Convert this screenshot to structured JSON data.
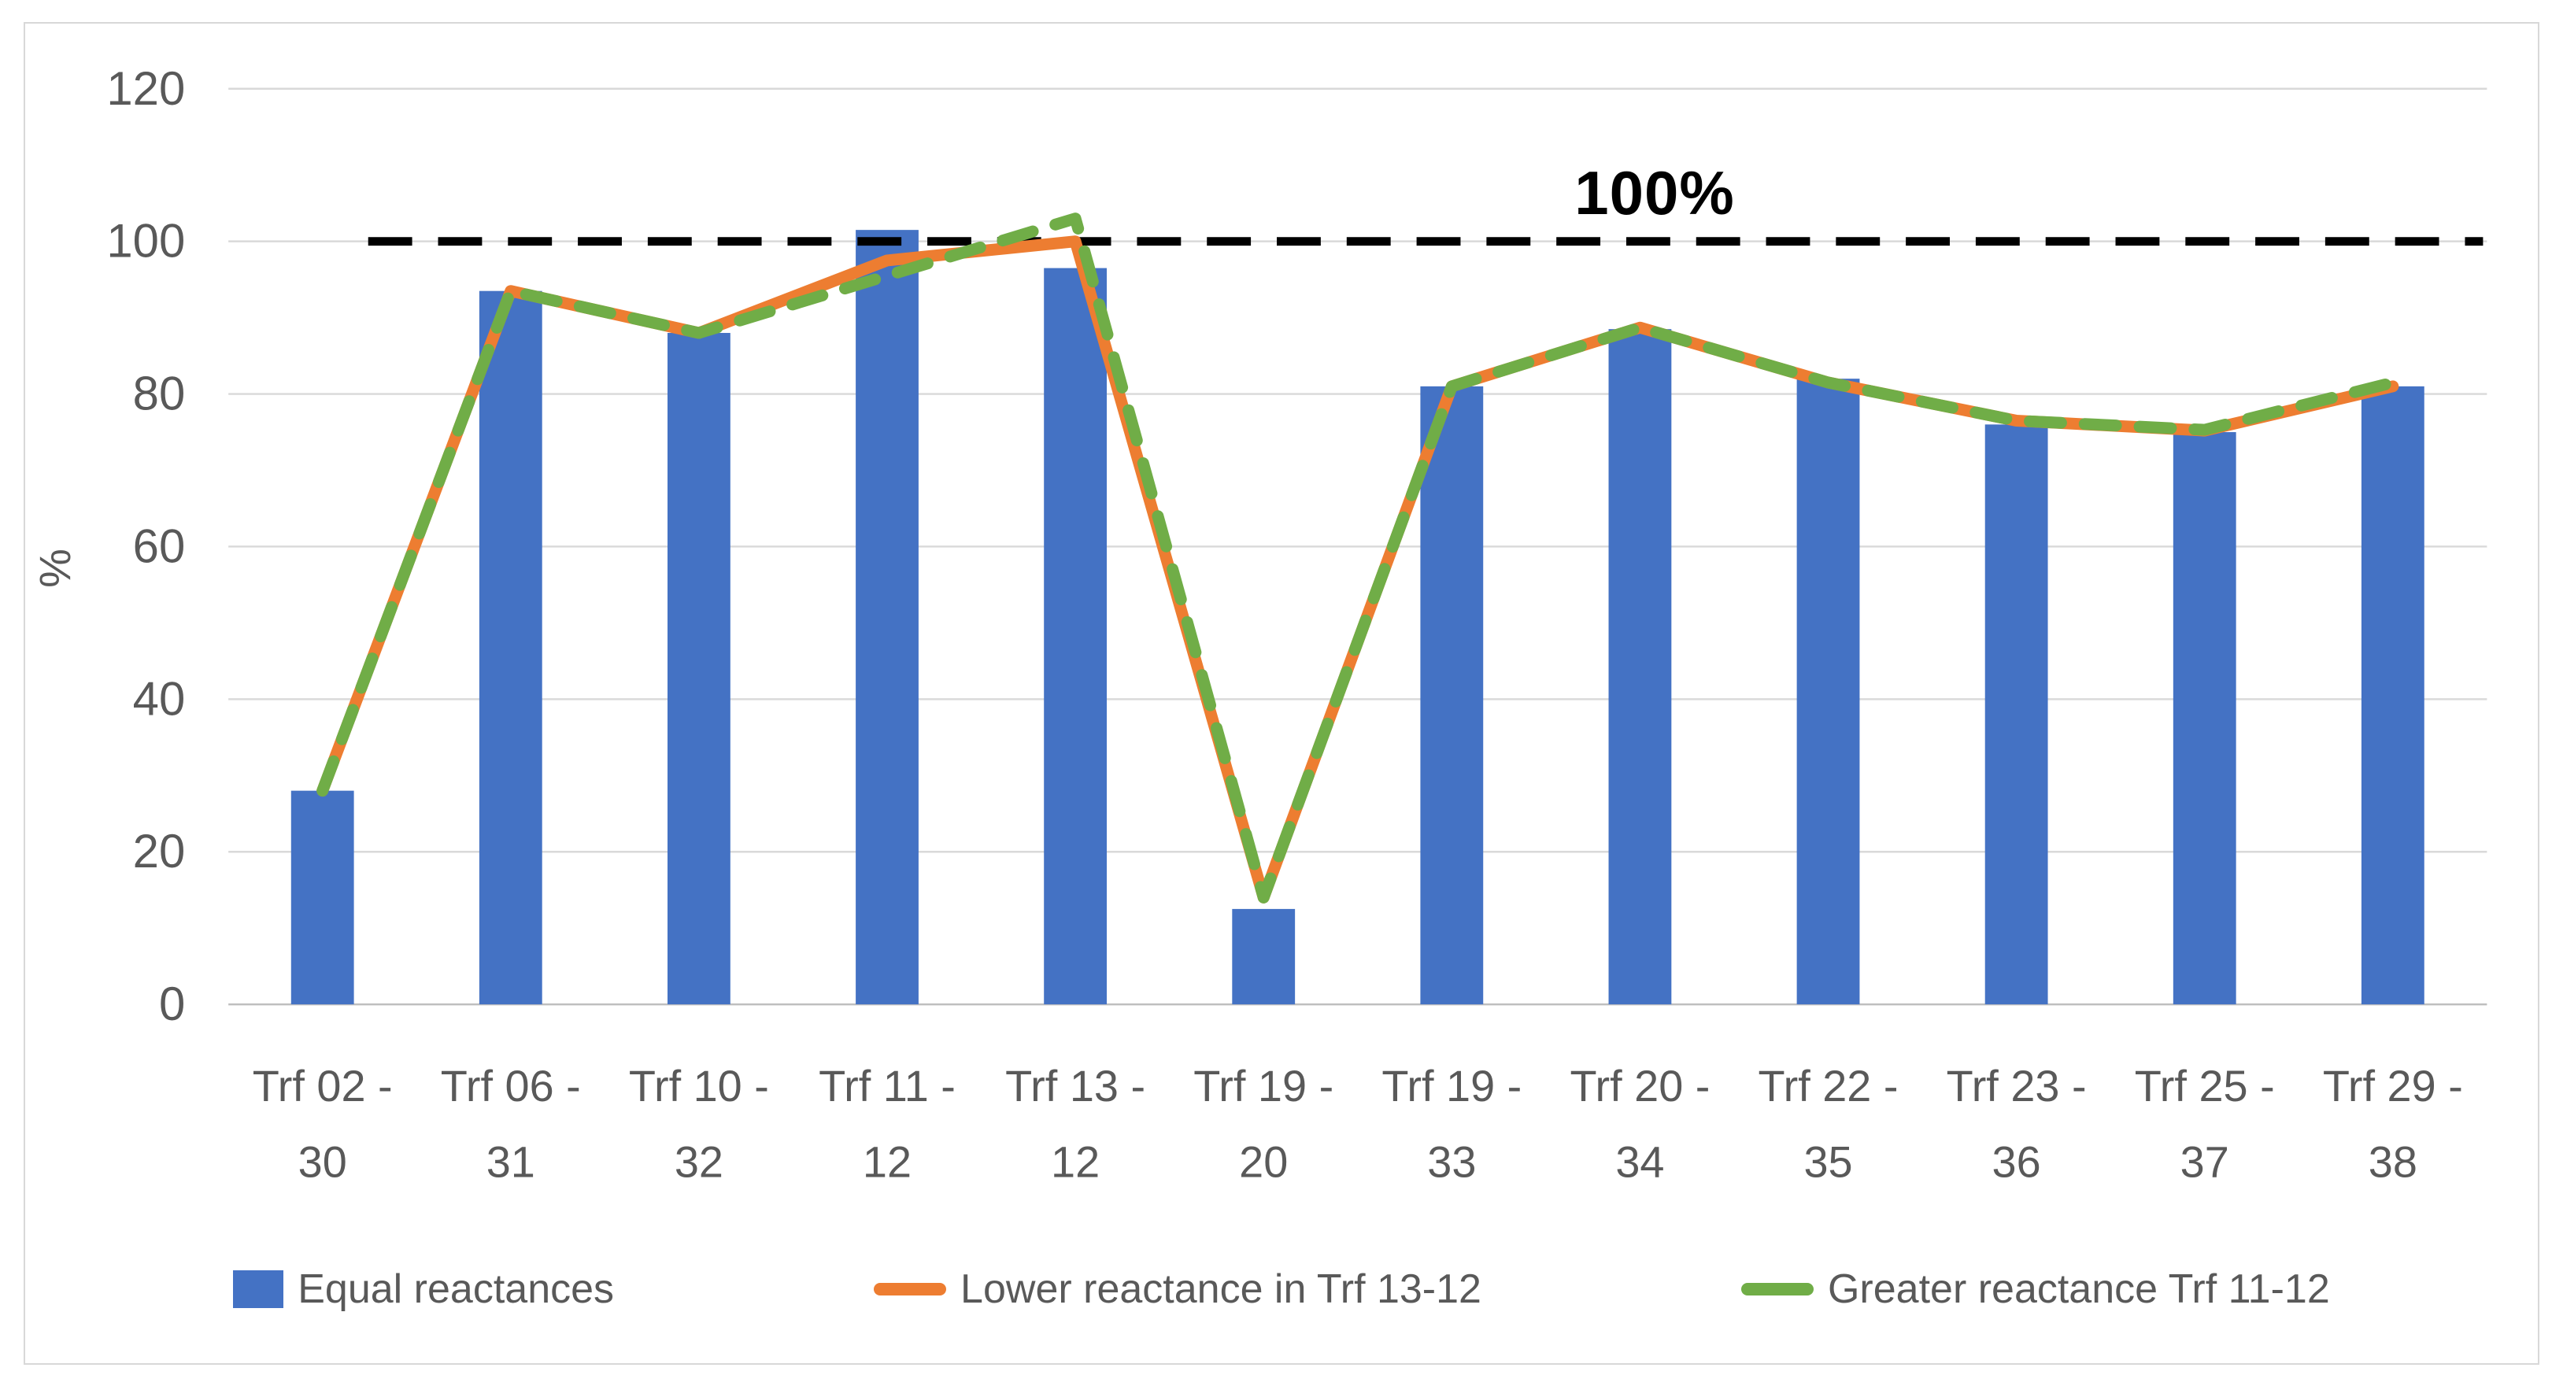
{
  "chart_data": {
    "type": "combo-bar-line",
    "title": "",
    "xlabel": "",
    "ylabel": "%",
    "ylim": [
      0,
      120
    ],
    "yticks": [
      0,
      20,
      40,
      60,
      80,
      100,
      120
    ],
    "grid": true,
    "legend_position": "bottom",
    "categories": [
      [
        "Trf 02 -",
        "30"
      ],
      [
        "Trf 06 -",
        "31"
      ],
      [
        "Trf 10 -",
        "32"
      ],
      [
        "Trf 11 -",
        "12"
      ],
      [
        "Trf 13 -",
        "12"
      ],
      [
        "Trf 19 -",
        "20"
      ],
      [
        "Trf 19 -",
        "33"
      ],
      [
        "Trf 20 -",
        "34"
      ],
      [
        "Trf 22 -",
        "35"
      ],
      [
        "Trf 23 -",
        "36"
      ],
      [
        "Trf 25 -",
        "37"
      ],
      [
        "Trf 29 -",
        "38"
      ]
    ],
    "series": [
      {
        "name": "Equal reactances",
        "type": "bar",
        "style": "solid",
        "color": "#4472C4",
        "values": [
          28,
          93.5,
          88,
          101.5,
          96.5,
          12.5,
          81,
          88.5,
          82,
          76,
          75,
          81
        ]
      },
      {
        "name": "Lower reactance in Trf 13-12",
        "type": "line",
        "style": "solid",
        "color": "#ED7D31",
        "values": [
          28,
          93.5,
          88,
          97.5,
          100,
          14,
          81,
          88.7,
          81.5,
          76.5,
          75.2,
          81
        ]
      },
      {
        "name": "Greater reactance Trf 11-12",
        "type": "line",
        "style": "dashed",
        "color": "#70AD47",
        "values": [
          28,
          93.5,
          88,
          95.5,
          103,
          14,
          81,
          88.7,
          81.5,
          76.5,
          75.3,
          81.5
        ]
      }
    ],
    "reference_line": {
      "value": 100,
      "label": "100%",
      "color": "#000000",
      "style": "dashed"
    },
    "colors": {
      "gridline": "#D9D9D9",
      "axis_line": "#BFBFBF",
      "tick_text": "#595959"
    }
  }
}
